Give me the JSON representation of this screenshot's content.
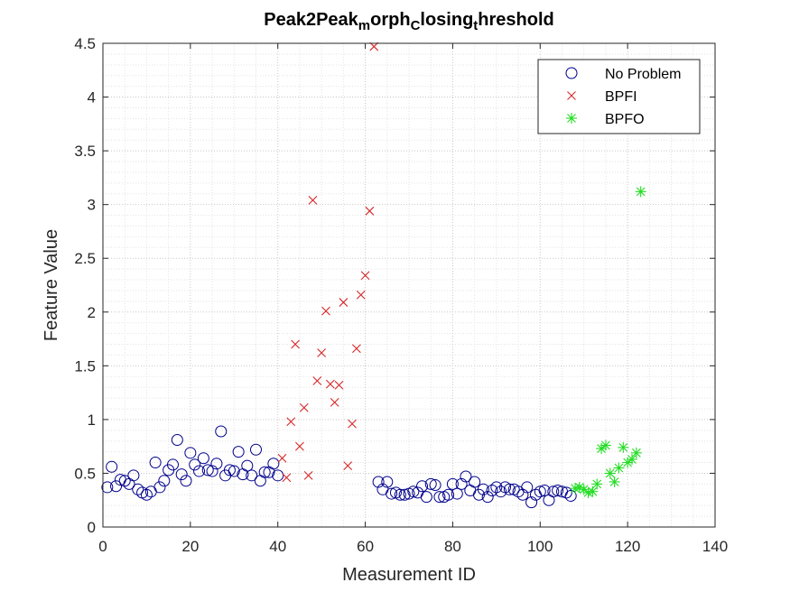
{
  "chart_data": {
    "type": "scatter",
    "title": {
      "segments": [
        {
          "text": "Peak2Peak",
          "sub": false
        },
        {
          "text": "m",
          "sub": true
        },
        {
          "text": "orph",
          "sub": false
        },
        {
          "text": "C",
          "sub": true
        },
        {
          "text": "losing",
          "sub": false
        },
        {
          "text": "t",
          "sub": true
        },
        {
          "text": "hreshold",
          "sub": false
        }
      ]
    },
    "xlabel": "Measurement ID",
    "ylabel": "Feature Value",
    "xlim": [
      0,
      140
    ],
    "ylim": [
      0,
      4.5
    ],
    "xticks": [
      "0",
      "20",
      "40",
      "60",
      "80",
      "100",
      "120",
      "140"
    ],
    "yticks": [
      "0",
      "0.5",
      "1",
      "1.5",
      "2",
      "2.5",
      "3",
      "3.5",
      "4",
      "4.5"
    ],
    "grid": "major and minor, dotted",
    "legend_position": "top-right",
    "series": [
      {
        "name": "No Problem",
        "marker": "circle",
        "color": "#00008B",
        "x": [
          1,
          2,
          3,
          4,
          5,
          6,
          7,
          8,
          9,
          10,
          11,
          12,
          13,
          14,
          15,
          16,
          17,
          18,
          19,
          20,
          21,
          22,
          23,
          24,
          25,
          26,
          27,
          28,
          29,
          30,
          31,
          32,
          33,
          34,
          35,
          36,
          37,
          38,
          39,
          40,
          63,
          64,
          65,
          66,
          67,
          68,
          69,
          70,
          71,
          72,
          73,
          74,
          75,
          76,
          77,
          78,
          79,
          80,
          81,
          82,
          83,
          84,
          85,
          86,
          87,
          88,
          89,
          90,
          91,
          92,
          93,
          94,
          95,
          96,
          97,
          98,
          99,
          100,
          101,
          102,
          103,
          104,
          105,
          106,
          107
        ],
        "y": [
          0.37,
          0.56,
          0.38,
          0.44,
          0.43,
          0.4,
          0.48,
          0.35,
          0.32,
          0.3,
          0.33,
          0.6,
          0.37,
          0.43,
          0.53,
          0.58,
          0.81,
          0.49,
          0.43,
          0.69,
          0.58,
          0.52,
          0.64,
          0.53,
          0.52,
          0.59,
          0.89,
          0.48,
          0.53,
          0.52,
          0.7,
          0.49,
          0.57,
          0.48,
          0.72,
          0.43,
          0.51,
          0.51,
          0.59,
          0.48,
          0.42,
          0.35,
          0.42,
          0.31,
          0.32,
          0.3,
          0.3,
          0.31,
          0.33,
          0.32,
          0.38,
          0.28,
          0.4,
          0.39,
          0.28,
          0.28,
          0.3,
          0.4,
          0.31,
          0.4,
          0.47,
          0.34,
          0.42,
          0.3,
          0.35,
          0.28,
          0.34,
          0.37,
          0.33,
          0.37,
          0.35,
          0.35,
          0.33,
          0.3,
          0.37,
          0.23,
          0.3,
          0.33,
          0.34,
          0.25,
          0.33,
          0.34,
          0.33,
          0.32,
          0.29
        ]
      },
      {
        "name": "BPFI",
        "marker": "x",
        "color": "#D62728",
        "x": [
          41,
          42,
          43,
          44,
          45,
          46,
          47,
          48,
          49,
          50,
          51,
          52,
          53,
          54,
          55,
          56,
          57,
          58,
          59,
          60,
          61,
          62
        ],
        "y": [
          0.64,
          0.46,
          0.98,
          1.7,
          0.75,
          1.11,
          0.48,
          3.04,
          1.36,
          1.62,
          2.01,
          1.33,
          1.16,
          1.32,
          2.09,
          0.57,
          0.96,
          1.66,
          2.16,
          2.34,
          2.94,
          4.47
        ]
      },
      {
        "name": "BPFO",
        "marker": "asterisk",
        "color": "#22DD22",
        "x": [
          108,
          109,
          110,
          111,
          112,
          113,
          114,
          115,
          116,
          117,
          118,
          119,
          120,
          121,
          122,
          123
        ],
        "y": [
          0.36,
          0.37,
          0.35,
          0.32,
          0.33,
          0.4,
          0.73,
          0.76,
          0.5,
          0.42,
          0.55,
          0.74,
          0.6,
          0.63,
          0.69,
          3.12
        ]
      }
    ]
  }
}
